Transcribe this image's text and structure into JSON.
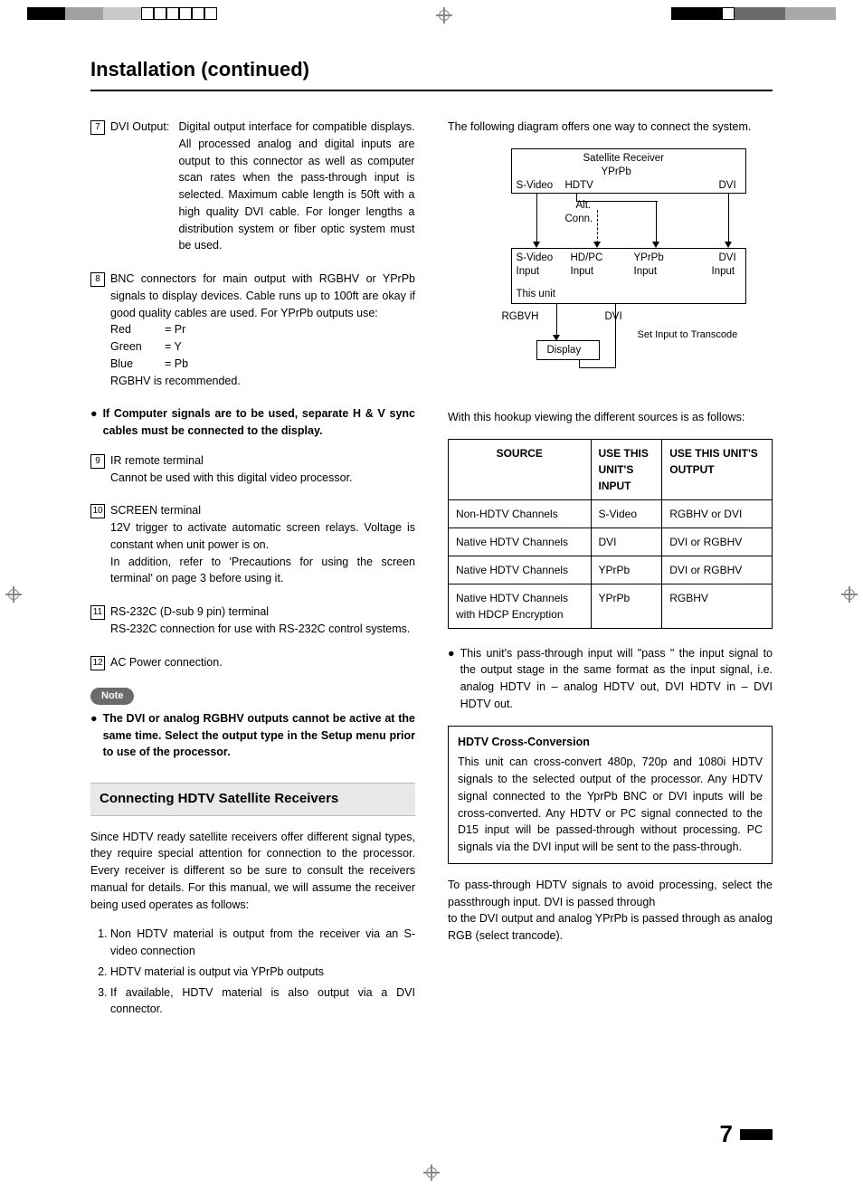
{
  "page_title": "Installation (continued)",
  "page_number": "7",
  "left": {
    "item7": {
      "num": "7",
      "label": "DVI Output:",
      "text": "Digital output interface for compatible displays. All processed analog and digital inputs are output to this connector as well as computer scan rates when the pass-through input is selected. Maximum cable length is 50ft with a high quality DVI cable. For longer lengths a distribution system or fiber optic system must be used."
    },
    "item8": {
      "num": "8",
      "text": "BNC connectors for main output with RGBHV or YPrPb signals to display devices. Cable runs up to 100ft are okay if good quality cables are used. For YPrPb outputs use:",
      "colors": [
        {
          "name": "Red",
          "val": "= Pr"
        },
        {
          "name": "Green",
          "val": "= Y"
        },
        {
          "name": "Blue",
          "val": "= Pb"
        }
      ],
      "rec": "RGBHV is recommended."
    },
    "bullet8b": "If Computer signals are to be used, separate H & V sync cables must be connected to the display.",
    "item9": {
      "num": "9",
      "title": "IR remote terminal",
      "text": "Cannot be used with this digital video processor."
    },
    "item10": {
      "num": "10",
      "title": "SCREEN terminal",
      "text1": "12V trigger to activate automatic screen relays. Voltage is constant when unit power is on.",
      "text2": "In addition, refer to 'Precautions for using the screen terminal' on page 3 before using it."
    },
    "item11": {
      "num": "11",
      "title": "RS-232C (D-sub 9 pin) terminal",
      "text": "RS-232C connection for use with RS-232C control systems."
    },
    "item12": {
      "num": "12",
      "text": "AC Power connection."
    },
    "note_label": "Note",
    "note_text": "The DVI or analog RGBHV outputs cannot be active at the same time. Select the output type in the Setup menu prior to use of the processor.",
    "sect_heading": "Connecting HDTV Satellite Receivers",
    "sect_intro": "Since HDTV ready satellite receivers offer different signal types, they require special attention for connection to the processor. Every receiver is different so be sure to consult the receivers manual for details. For this manual, we will assume the receiver being used operates as follows:",
    "enum": [
      "Non HDTV material is output from the receiver via an S-video connection",
      "HDTV material is output via YPrPb outputs",
      "If available, HDTV material is also output via a DVI connector."
    ]
  },
  "right": {
    "diag_intro": "The following diagram offers one way to connect the system.",
    "diag": {
      "sat": "Satellite Receiver",
      "yprpb": "YPrPb",
      "svideo": "S-Video",
      "hdtv": "HDTV",
      "dvi": "DVI",
      "alt": "Alt.",
      "conn": "Conn.",
      "sv_in": "S-Video",
      "hdpc_in": "HD/PC",
      "yp_in": "YPrPb",
      "dvi_in": "DVI",
      "input": "Input",
      "unit": "This unit",
      "rgbvh": "RGBVH",
      "dvi2": "DVI",
      "set": "Set Input to Transcode",
      "display": "Display"
    },
    "hookup_intro": "With this hookup viewing the different sources is as follows:",
    "table": {
      "h1": "SOURCE",
      "h2": "USE THIS UNIT'S INPUT",
      "h3": "USE THIS UNIT'S OUTPUT",
      "rows": [
        {
          "c1": "Non-HDTV Channels",
          "c2": "S-Video",
          "c3": "RGBHV or DVI"
        },
        {
          "c1": "Native HDTV Channels",
          "c2": "DVI",
          "c3": "DVI or RGBHV"
        },
        {
          "c1": "Native HDTV Channels",
          "c2": "YPrPb",
          "c3": "DVI or RGBHV"
        },
        {
          "c1": "Native HDTV Channels with HDCP Encryption",
          "c2": "YPrPb",
          "c3": "RGBHV"
        }
      ]
    },
    "bullet_pass": "This unit's pass-through input will \"pass \" the input signal to the output stage in the same format as the input signal, i.e. analog HDTV in – analog HDTV out, DVI HDTV in – DVI HDTV out.",
    "cross_title": "HDTV Cross-Conversion",
    "cross_body": "This unit can cross-convert 480p, 720p and 1080i HDTV signals to the selected output of the processor. Any HDTV signal connected to the YprPb BNC or DVI inputs will be cross-converted. Any HDTV or PC signal connected to the D15 input will be passed-through without processing. PC signals via the DVI input will be sent to the pass-through.",
    "tail1": "To pass-through HDTV signals to avoid processing, select the passthrough input. DVI is passed through",
    "tail2": "to the DVI output and analog YPrPb is passed through as analog RGB (select trancode)."
  },
  "topbar_colors_left": [
    "#000",
    "#000",
    "#000",
    "#a0a0a0",
    "#a0a0a0",
    "#a0a0a0",
    "#c8c8c8",
    "#c8c8c8",
    "#c8c8c8",
    "#fff",
    "#fff",
    "#fff",
    "#fff",
    "#fff",
    "#fff"
  ],
  "topbar_colors_right": [
    "#000",
    "#000",
    "#000",
    "#000",
    "#fff",
    "#6a6a6a",
    "#6a6a6a",
    "#6a6a6a",
    "#6a6a6a",
    "#a8a8a8",
    "#a8a8a8",
    "#a8a8a8",
    "#a8a8a8"
  ]
}
